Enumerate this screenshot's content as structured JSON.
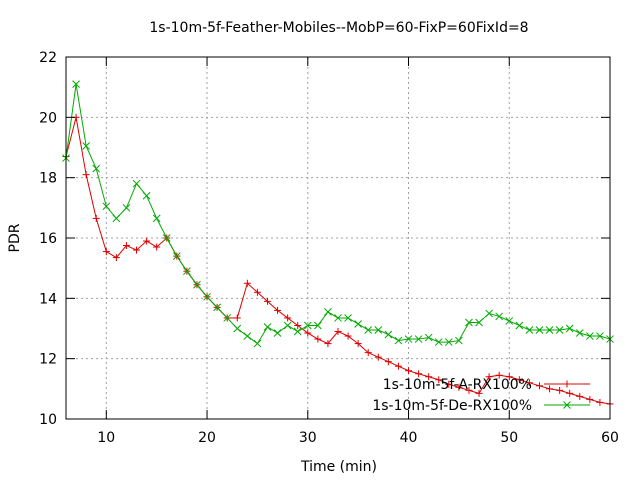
{
  "chart_data": {
    "type": "line",
    "title": "1s-10m-5f-Feather-Mobiles--MobP=60-FixP=60FixId=8",
    "xlabel": "Time (min)",
    "ylabel": "PDR",
    "xlim": [
      6,
      60
    ],
    "ylim": [
      10,
      22
    ],
    "xticks": [
      10,
      20,
      30,
      40,
      50,
      60
    ],
    "yticks": [
      10,
      12,
      14,
      16,
      18,
      20,
      22
    ],
    "grid": true,
    "legend_position": "bottom-right",
    "series": [
      {
        "name": "1s-10m-5f-A-RX100%",
        "color": "#dd0000",
        "marker": "plus",
        "x": [
          6,
          7,
          8,
          9,
          10,
          11,
          12,
          13,
          14,
          15,
          16,
          17,
          18,
          19,
          20,
          21,
          22,
          23,
          24,
          25,
          26,
          27,
          28,
          29,
          30,
          31,
          32,
          33,
          34,
          35,
          36,
          37,
          38,
          39,
          40,
          41,
          42,
          43,
          44,
          45,
          46,
          47,
          48,
          49,
          50,
          51,
          52,
          53,
          54,
          55,
          56,
          57,
          58,
          59,
          60
        ],
        "values": [
          18.7,
          20.0,
          18.1,
          16.65,
          15.55,
          15.35,
          15.75,
          15.6,
          15.9,
          15.7,
          16.0,
          15.4,
          14.9,
          14.45,
          14.05,
          13.7,
          13.35,
          13.35,
          14.5,
          14.2,
          13.9,
          13.6,
          13.35,
          13.1,
          12.85,
          12.65,
          12.5,
          12.9,
          12.75,
          12.5,
          12.2,
          12.05,
          11.9,
          11.75,
          11.6,
          11.5,
          11.4,
          11.3,
          11.15,
          11.05,
          10.95,
          10.85,
          11.4,
          11.45,
          11.4,
          11.3,
          11.2,
          11.1,
          11.0,
          10.95,
          10.85,
          10.75,
          10.65,
          10.55,
          10.5
        ]
      },
      {
        "name": "1s-10m-5f-De-RX100%",
        "color": "#00aa00",
        "marker": "cross",
        "x": [
          6,
          7,
          8,
          9,
          10,
          11,
          12,
          13,
          14,
          15,
          16,
          17,
          18,
          19,
          20,
          21,
          22,
          23,
          24,
          25,
          26,
          27,
          28,
          29,
          30,
          31,
          32,
          33,
          34,
          35,
          36,
          37,
          38,
          39,
          40,
          41,
          42,
          43,
          44,
          45,
          46,
          47,
          48,
          49,
          50,
          51,
          52,
          53,
          54,
          55,
          56,
          57,
          58,
          59,
          60
        ],
        "values": [
          18.65,
          21.1,
          19.05,
          18.3,
          17.05,
          16.65,
          17.0,
          17.8,
          17.4,
          16.65,
          16.0,
          15.4,
          14.9,
          14.45,
          14.05,
          13.7,
          13.35,
          13.0,
          12.75,
          12.5,
          13.05,
          12.85,
          13.1,
          12.9,
          13.1,
          13.1,
          13.55,
          13.35,
          13.35,
          13.15,
          12.95,
          12.95,
          12.8,
          12.6,
          12.65,
          12.65,
          12.7,
          12.55,
          12.55,
          12.6,
          13.2,
          13.2,
          13.5,
          13.4,
          13.25,
          13.1,
          12.95,
          12.95,
          12.95,
          12.95,
          13.0,
          12.85,
          12.75,
          12.75,
          12.65
        ]
      }
    ]
  }
}
